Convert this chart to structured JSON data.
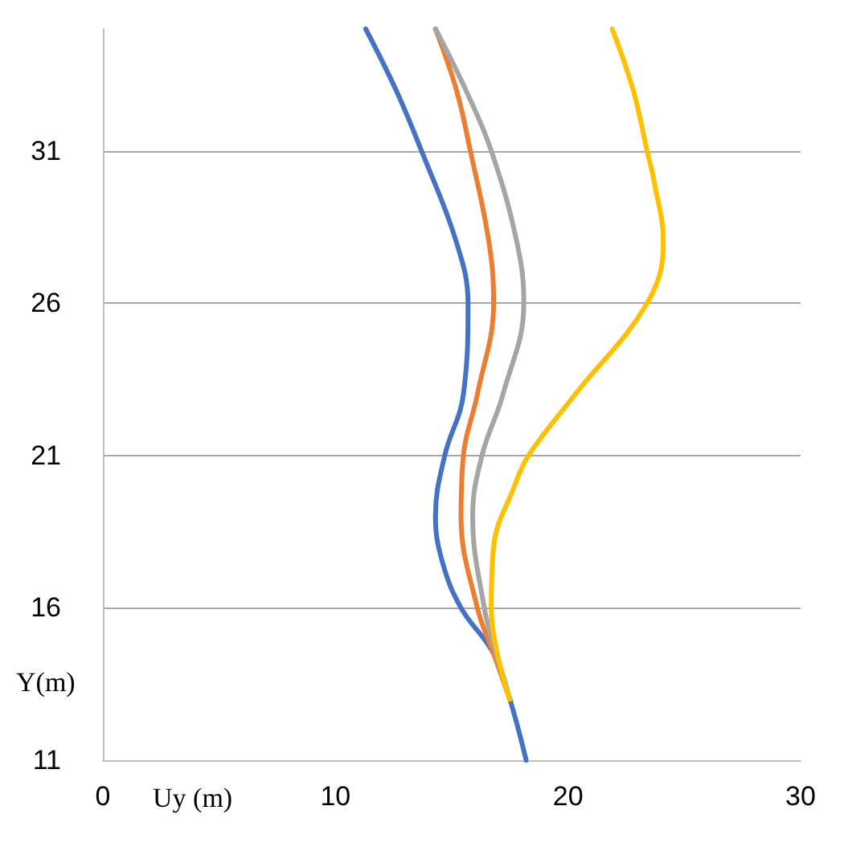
{
  "chart_data": {
    "type": "line",
    "xlabel": "Uy (m)",
    "ylabel": "Y(m)",
    "xlim": [
      0,
      30
    ],
    "xticks": [
      0,
      10,
      20,
      30
    ],
    "ylim": [
      11,
      35
    ],
    "yticks": [
      11,
      16,
      21,
      26,
      31
    ],
    "grid": "y",
    "marker": "none",
    "line_style": "solid",
    "series": [
      {
        "color": "#4472c4",
        "x": [
          18.2,
          17.5,
          16.8,
          15.4,
          14.6,
          14.3,
          14.7,
          15.5,
          15.7,
          15.2,
          13.7,
          12.6,
          11.3
        ],
        "values": [
          11,
          13,
          14.5,
          16,
          17.5,
          19,
          21,
          23,
          26,
          28,
          31,
          33,
          35
        ]
      },
      {
        "color": "#ed7d31",
        "x": [
          17.5,
          16.8,
          16.1,
          15.4,
          15.5,
          16.1,
          16.8,
          16.6,
          15.8,
          15.2,
          14.3
        ],
        "values": [
          13,
          14.5,
          16,
          19,
          21,
          23,
          26,
          28,
          31,
          33,
          35
        ]
      },
      {
        "color": "#a5a5a5",
        "x": [
          17.5,
          16.9,
          16.4,
          15.9,
          16.3,
          17.2,
          18.1,
          17.8,
          16.7,
          15.6,
          14.3
        ],
        "values": [
          13,
          14.5,
          16,
          19,
          21,
          23,
          26,
          28,
          31,
          33,
          35
        ]
      },
      {
        "color": "#ffc000",
        "x": [
          17.5,
          16.7,
          16.8,
          17.7,
          18.3,
          20.3,
          23.4,
          24.1,
          23.7,
          23.4,
          22.8,
          21.9
        ],
        "values": [
          13,
          16,
          18,
          20,
          21,
          23,
          26,
          28,
          30,
          31,
          33,
          35
        ]
      }
    ]
  }
}
